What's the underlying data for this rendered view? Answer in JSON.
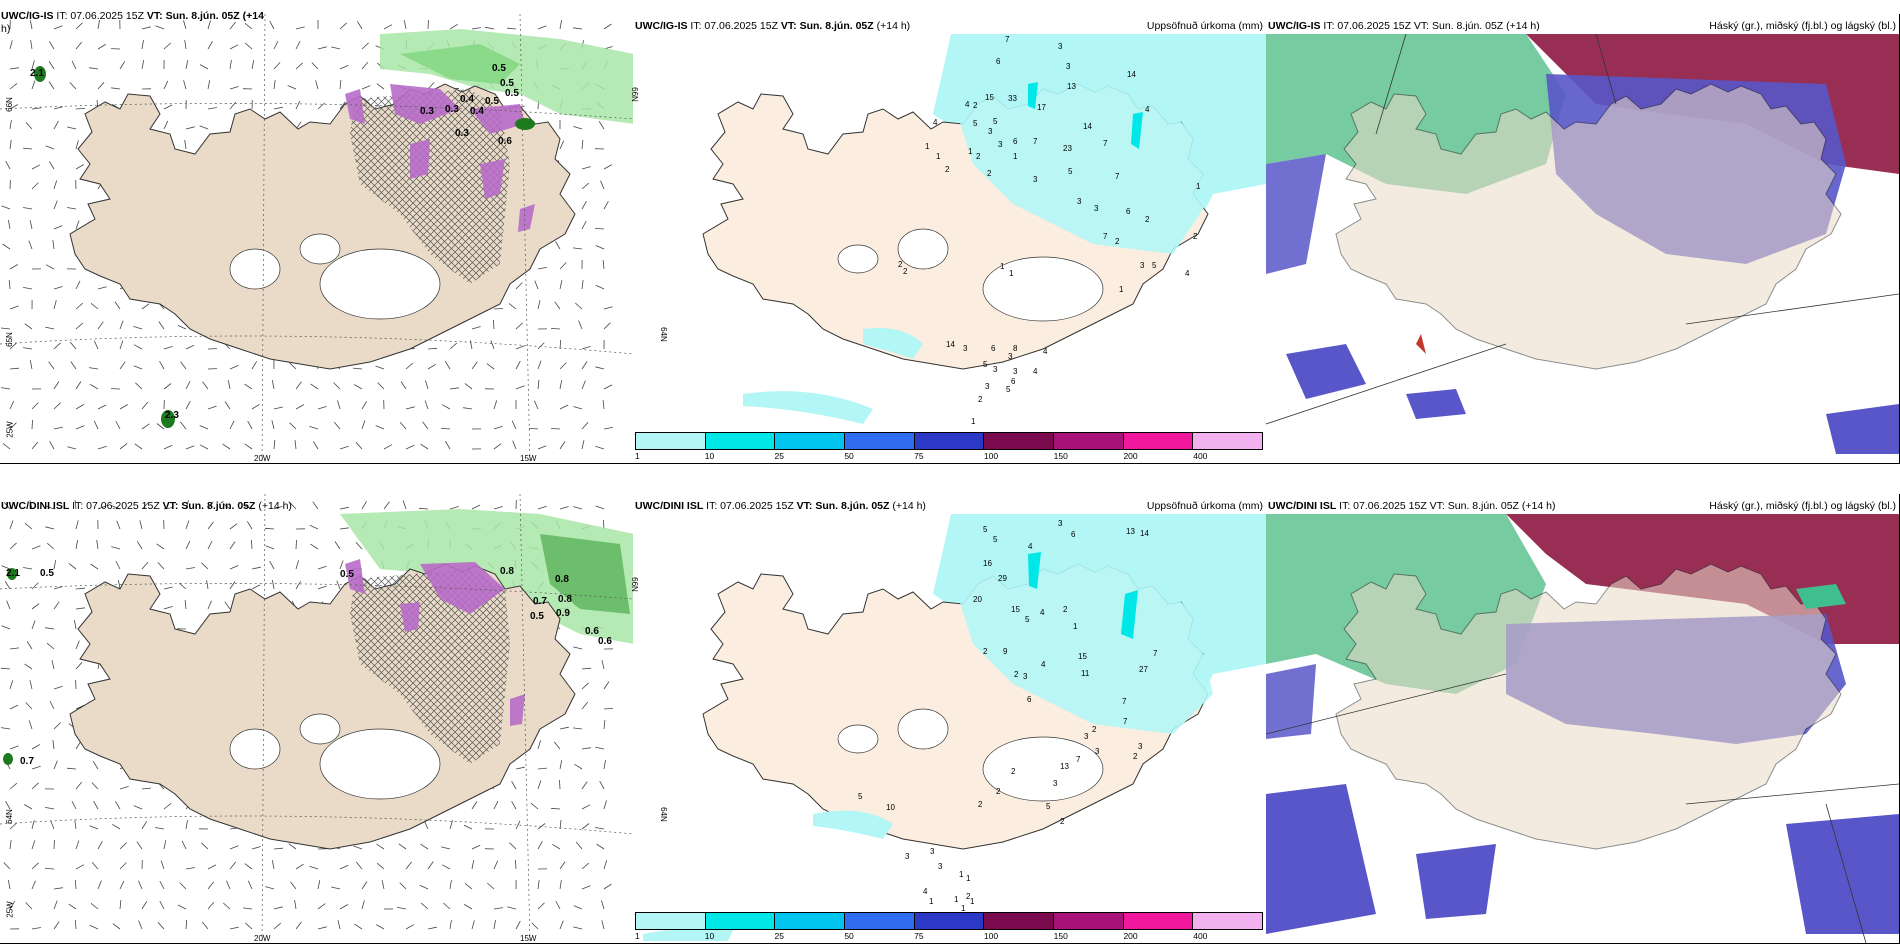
{
  "panels": [
    {
      "id": "p1",
      "model": "UWC/IG-IS",
      "it": "IT: 07.06.2025 15Z",
      "vt": "VT: Sun. 8.jún. 05Z (+14",
      "vt2": "h)",
      "title": "",
      "type": "cloud"
    },
    {
      "id": "p2",
      "model": "UWC/IG-IS",
      "it": "IT: 07.06.2025 15Z",
      "vt": "VT: Sun. 8.jún. 05Z",
      "lead": "(+14 h)",
      "title": "Uppsöfnuð úrkoma (mm)",
      "type": "precip"
    },
    {
      "id": "p3",
      "model": "UWC/IG-IS",
      "it": "IT: 07.06.2025 15Z",
      "vt": "VT: Sun. 8.jún. 05Z",
      "lead": "(+14 h)",
      "title": "Háský (gr.), miðský (fj.bl.) og lágský (bl.)",
      "type": "layers"
    },
    {
      "id": "p4",
      "model": "UWC/DINI ISL",
      "it": "IT: 07.06.2025 15Z",
      "vt": "VT: Sun. 8.jún. 05Z",
      "lead": "(+14 h)",
      "title": "",
      "type": "cloud"
    },
    {
      "id": "p5",
      "model": "UWC/DINI ISL",
      "it": "IT: 07.06.2025 15Z",
      "vt": "VT: Sun. 8.jún. 05Z",
      "lead": "(+14 h)",
      "title": "Uppsöfnuð úrkoma (mm)",
      "type": "precip"
    },
    {
      "id": "p6",
      "model": "UWC/DINI ISL",
      "it": "IT: 07.06.2025 15Z",
      "vt": "VT: Sun. 8.jún. 05Z",
      "lead": "(+14 h)",
      "title": "Háský (gr.), miðský (fj.bl.) og lágský (bl.)",
      "type": "layers"
    }
  ],
  "colorbar": {
    "colors": [
      "#b3f6f6",
      "#00e7e7",
      "#00c3ee",
      "#2f6cf0",
      "#2b39c6",
      "#7a0a4e",
      "#a8137a",
      "#f0199e",
      "#f2b2f0"
    ],
    "ticks": [
      "1",
      "10",
      "25",
      "50",
      "75",
      "100",
      "150",
      "200",
      "400"
    ]
  },
  "axes": {
    "lon_labels": [
      "20W",
      "15W"
    ],
    "lat_labels_left": [
      "66N",
      "65N",
      "64N"
    ],
    "lat_labels_precip": [
      "66N",
      "64N"
    ],
    "lon_left": "25W"
  },
  "precip_top_labels": [
    "7",
    "6",
    "3",
    "3",
    "13",
    "14",
    "4",
    "15",
    "33",
    "17",
    "4",
    "4",
    "2",
    "5",
    "3",
    "5",
    "6",
    "14",
    "7",
    "1",
    "2",
    "23",
    "7",
    "1",
    "1",
    "2",
    "3",
    "1",
    "2",
    "3",
    "7",
    "7",
    "5",
    "3",
    "3",
    "6",
    "2",
    "1",
    "2",
    "4",
    "1",
    "3",
    "5",
    "2",
    "1",
    "1",
    "2",
    "2",
    "14",
    "3",
    "6",
    "8",
    "3",
    "5",
    "3",
    "4",
    "4",
    "3",
    "6",
    "5",
    "3",
    "2",
    "1"
  ],
  "precip_bot_labels": [
    "5",
    "5",
    "3",
    "6",
    "13",
    "14",
    "4",
    "16",
    "29",
    "20",
    "15",
    "4",
    "5",
    "2",
    "1",
    "15",
    "27",
    "7",
    "11",
    "7",
    "7",
    "3",
    "2",
    "2",
    "3",
    "2",
    "9",
    "3",
    "4",
    "2",
    "6",
    "13",
    "7",
    "3",
    "2",
    "2",
    "3",
    "5",
    "2",
    "2",
    "5",
    "10",
    "3",
    "3",
    "3",
    "1",
    "1",
    "4",
    "1",
    "1",
    "2",
    "1",
    "1",
    "2",
    "4",
    "6",
    "1"
  ],
  "cloud_top_labels": [
    "2.1",
    "0.5",
    "0.5",
    "0.3",
    "0.3",
    "0.4",
    "0.4",
    "0.5",
    "0.5",
    "0.6",
    "0.3",
    "2.3"
  ],
  "cloud_bot_labels": [
    "2.1",
    "0.5",
    "0.5",
    "0.8",
    "0.8",
    "0.8",
    "0.9",
    "0.7",
    "0.6",
    "0.6",
    "0.7",
    "0.5"
  ]
}
